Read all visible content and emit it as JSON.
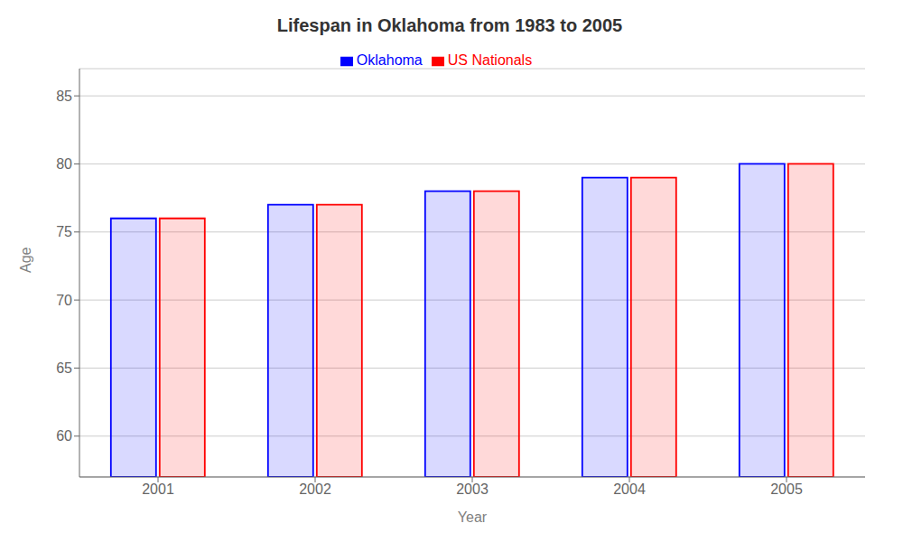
{
  "chart_data": {
    "type": "bar",
    "title": "Lifespan in Oklahoma from 1983 to 2005",
    "x_label": "Year",
    "y_label": "Age",
    "categories": [
      "2001",
      "2002",
      "2003",
      "2004",
      "2005"
    ],
    "series": [
      {
        "name": "Oklahoma",
        "color": "#0000ff",
        "values": [
          76,
          77,
          78,
          79,
          80
        ]
      },
      {
        "name": "US Nationals",
        "color": "#ff0000",
        "values": [
          76,
          77,
          78,
          79,
          80
        ]
      }
    ],
    "ylim": [
      57,
      87
    ],
    "yticks": [
      60,
      65,
      70,
      75,
      80,
      85
    ],
    "grid": true,
    "legend": "top"
  }
}
